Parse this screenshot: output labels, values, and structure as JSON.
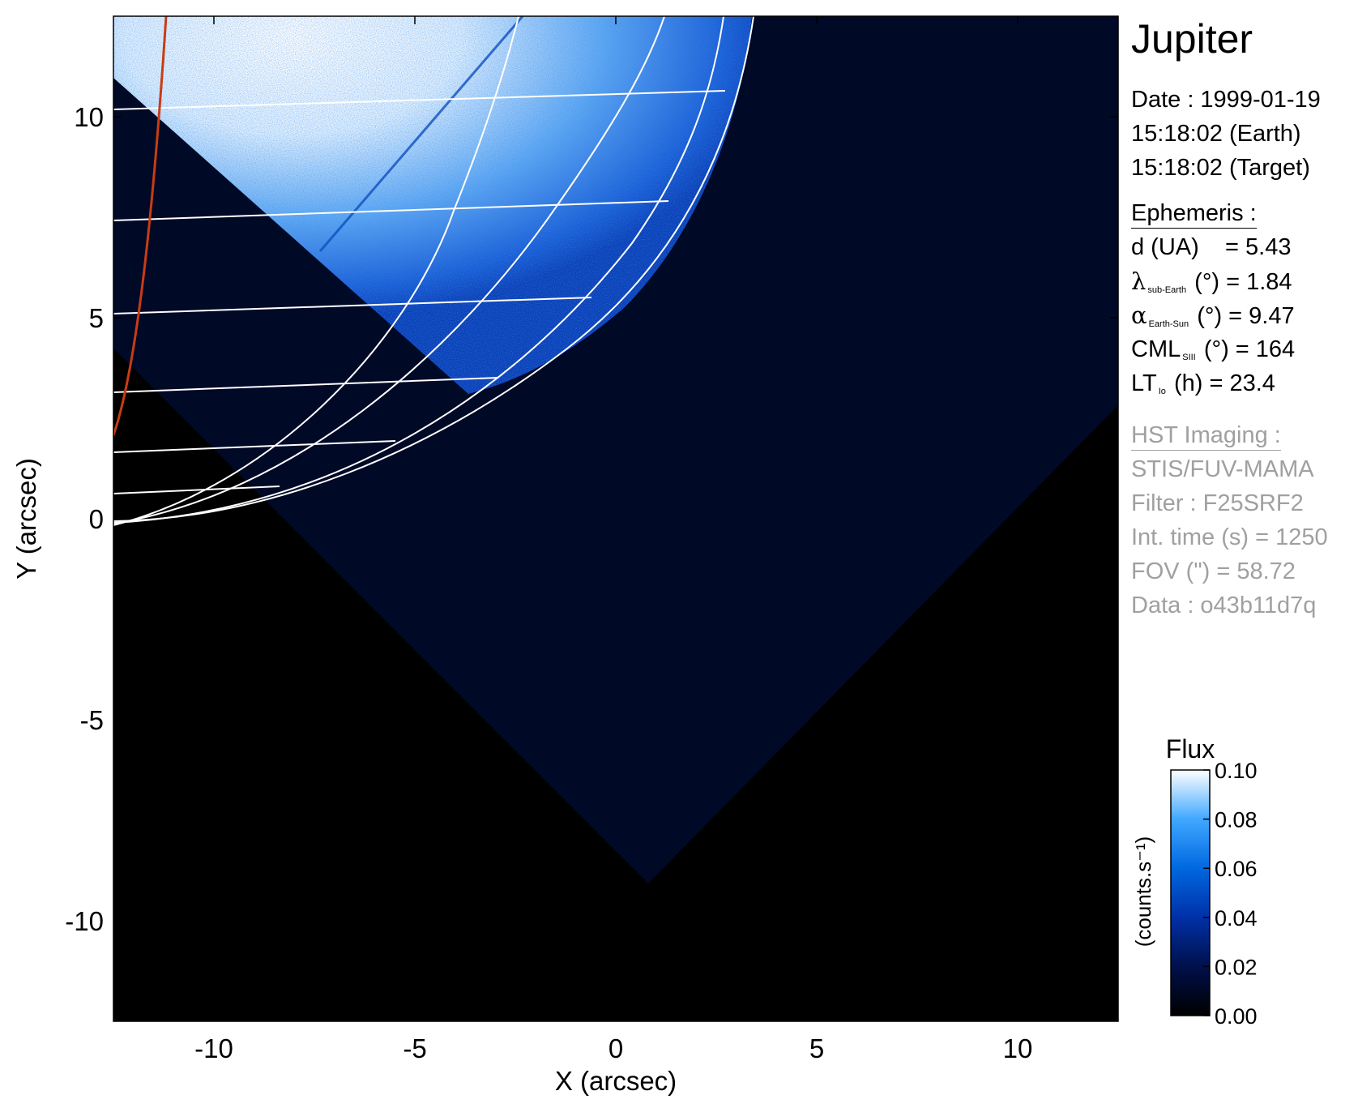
{
  "chart_data": {
    "type": "heatmap",
    "xlabel": "X (arcsec)",
    "ylabel": "Y (arcsec)",
    "xlim": [
      -12.5,
      12.5
    ],
    "ylim": [
      -12.5,
      12.5
    ],
    "xticks": [
      -10,
      -5,
      0,
      5,
      10
    ],
    "yticks": [
      -10,
      -5,
      0,
      5,
      10
    ],
    "colorbar": {
      "title": "Flux",
      "label": "(counts.s⁻¹)",
      "range": [
        0.0,
        0.1
      ],
      "ticks": [
        "0.00",
        "0.02",
        "0.04",
        "0.06",
        "0.08",
        "0.10"
      ],
      "colors": [
        "#000000",
        "#00104a",
        "#0030a8",
        "#0068e0",
        "#40a8ff",
        "#ffffff"
      ]
    },
    "image_color": "#3a7ff0",
    "grid_color": "#ffffff",
    "limb_line_color": "#c83c14"
  },
  "info": {
    "title": "Jupiter",
    "date_line": "Date : 1999-01-19",
    "time_earth": "15:18:02 (Earth)",
    "time_target": "15:18:02 (Target)",
    "ephemeris_heading": "Ephemeris :",
    "d_label": "d (UA)",
    "d_value": "= 5.43",
    "lambda_sym": "λ",
    "lambda_sub": "sub-Earth",
    "lambda_rest": "(°) = 1.84",
    "alpha_sym": "α",
    "alpha_sub": "Earth-Sun",
    "alpha_rest": "(°) = 9.47",
    "cml_label": "CML",
    "cml_sub": "SIII",
    "cml_rest": "(°) = 164",
    "lt_label": "LT",
    "lt_sub": "Io",
    "lt_rest": "(h) = 23.4",
    "hst_heading": "HST Imaging :",
    "instrument": "STIS/FUV-MAMA",
    "filter": "Filter : F25SRF2",
    "int_time": "Int. time (s) = 1250",
    "fov": "FOV (\") = 58.72",
    "data_id": "Data : o43b11d7q"
  }
}
